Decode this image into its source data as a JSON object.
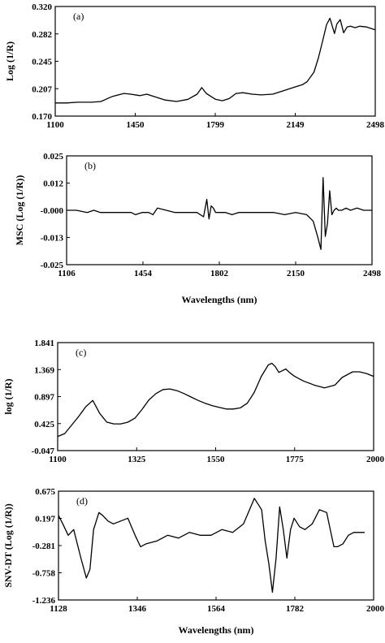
{
  "chart_data": [
    {
      "type": "line",
      "panel_label": "(a)",
      "ylabel": "Log (1/R)",
      "xlabel": "",
      "xticks": [
        "1100",
        "1450",
        "1799",
        "2149",
        "2498"
      ],
      "yticks": [
        "0.320",
        "0.282",
        "0.245",
        "0.207",
        "0.170"
      ],
      "xlim": [
        1100,
        2498
      ],
      "ylim": [
        0.17,
        0.32
      ],
      "grid": false,
      "series": [
        {
          "x": [
            1100,
            1150,
            1200,
            1260,
            1300,
            1350,
            1400,
            1430,
            1470,
            1500,
            1530,
            1580,
            1630,
            1680,
            1720,
            1740,
            1760,
            1780,
            1800,
            1830,
            1860,
            1890,
            1920,
            1960,
            2000,
            2050,
            2100,
            2149,
            2180,
            2200,
            2230,
            2250,
            2270,
            2285,
            2300,
            2320,
            2330,
            2345,
            2360,
            2375,
            2390,
            2410,
            2430,
            2460,
            2498
          ],
          "values": [
            0.188,
            0.188,
            0.189,
            0.189,
            0.19,
            0.197,
            0.201,
            0.2,
            0.198,
            0.2,
            0.197,
            0.192,
            0.19,
            0.193,
            0.2,
            0.209,
            0.201,
            0.197,
            0.193,
            0.191,
            0.194,
            0.201,
            0.202,
            0.2,
            0.199,
            0.2,
            0.205,
            0.21,
            0.213,
            0.217,
            0.23,
            0.25,
            0.275,
            0.295,
            0.304,
            0.283,
            0.296,
            0.302,
            0.284,
            0.292,
            0.293,
            0.291,
            0.293,
            0.292,
            0.288
          ]
        }
      ]
    },
    {
      "type": "line",
      "panel_label": "(b)",
      "ylabel": "MSC (Log (1/R))",
      "xlabel": "Wavelengths (nm)",
      "xticks": [
        "1106",
        "1454",
        "1802",
        "2150",
        "2498"
      ],
      "yticks": [
        "0.025",
        "0.012",
        "-0.000",
        "-0.013",
        "-0.025"
      ],
      "xlim": [
        1106,
        2498
      ],
      "ylim": [
        -0.025,
        0.025
      ],
      "grid": false,
      "series": [
        {
          "x": [
            1106,
            1150,
            1200,
            1230,
            1260,
            1300,
            1350,
            1400,
            1420,
            1450,
            1480,
            1500,
            1520,
            1560,
            1600,
            1650,
            1700,
            1730,
            1745,
            1755,
            1765,
            1775,
            1785,
            1800,
            1830,
            1860,
            1890,
            1920,
            1960,
            2000,
            2050,
            2100,
            2150,
            2200,
            2230,
            2250,
            2265,
            2275,
            2285,
            2295,
            2305,
            2315,
            2325,
            2335,
            2345,
            2360,
            2380,
            2400,
            2430,
            2460,
            2498
          ],
          "values": [
            0.0,
            0.0,
            -0.001,
            0.0,
            -0.001,
            -0.001,
            -0.001,
            -0.001,
            -0.002,
            -0.001,
            -0.001,
            -0.002,
            0.001,
            0.0,
            -0.001,
            -0.001,
            -0.001,
            -0.003,
            0.005,
            -0.004,
            0.002,
            0.001,
            -0.001,
            -0.001,
            -0.001,
            -0.002,
            -0.001,
            -0.001,
            -0.001,
            -0.001,
            -0.001,
            -0.002,
            -0.001,
            -0.002,
            -0.005,
            -0.012,
            -0.018,
            0.015,
            -0.012,
            -0.006,
            0.009,
            -0.002,
            0.0,
            0.001,
            0.0,
            0.0,
            0.001,
            0.0,
            0.001,
            0.0,
            0.0
          ]
        }
      ]
    },
    {
      "type": "line",
      "panel_label": "(c)",
      "ylabel": "log (1/R)",
      "xlabel": "",
      "xticks": [
        "1100",
        "1325",
        "1550",
        "1775",
        "2000"
      ],
      "yticks": [
        "1.841",
        "1.369",
        "0.897",
        "0.425",
        "-0.047"
      ],
      "xlim": [
        1100,
        2000
      ],
      "ylim": [
        -0.047,
        1.841
      ],
      "grid": false,
      "series": [
        {
          "x": [
            1100,
            1120,
            1140,
            1160,
            1180,
            1200,
            1220,
            1240,
            1260,
            1280,
            1300,
            1320,
            1340,
            1360,
            1380,
            1400,
            1420,
            1440,
            1460,
            1480,
            1500,
            1520,
            1540,
            1560,
            1580,
            1600,
            1620,
            1640,
            1660,
            1680,
            1700,
            1710,
            1720,
            1730,
            1740,
            1750,
            1760,
            1775,
            1800,
            1830,
            1860,
            1890,
            1910,
            1940,
            1960,
            1980,
            2000
          ],
          "values": [
            0.2,
            0.25,
            0.4,
            0.55,
            0.72,
            0.83,
            0.6,
            0.45,
            0.42,
            0.42,
            0.45,
            0.52,
            0.67,
            0.84,
            0.95,
            1.02,
            1.03,
            1.0,
            0.95,
            0.89,
            0.83,
            0.78,
            0.74,
            0.71,
            0.68,
            0.68,
            0.7,
            0.78,
            0.97,
            1.25,
            1.45,
            1.48,
            1.42,
            1.32,
            1.35,
            1.38,
            1.32,
            1.25,
            1.17,
            1.1,
            1.05,
            1.1,
            1.23,
            1.33,
            1.33,
            1.3,
            1.25
          ]
        }
      ]
    },
    {
      "type": "line",
      "panel_label": "(d)",
      "ylabel": "SNV-DT (Log (1/R))",
      "xlabel": "Wavelengths (nm)",
      "xticks": [
        "1128",
        "1346",
        "1564",
        "1782",
        "2000"
      ],
      "yticks": [
        "0.675",
        "0.197",
        "-0.281",
        "-0.758",
        "-1.236"
      ],
      "xlim": [
        1128,
        2000
      ],
      "ylim": [
        -1.236,
        0.675
      ],
      "grid": false,
      "series": [
        {
          "x": [
            1128,
            1140,
            1155,
            1170,
            1190,
            1205,
            1215,
            1225,
            1240,
            1250,
            1265,
            1280,
            1300,
            1320,
            1340,
            1355,
            1370,
            1400,
            1430,
            1460,
            1490,
            1520,
            1550,
            1580,
            1610,
            1640,
            1670,
            1690,
            1700,
            1710,
            1720,
            1730,
            1740,
            1750,
            1760,
            1770,
            1780,
            1795,
            1810,
            1830,
            1850,
            1870,
            1880,
            1890,
            1900,
            1915,
            1930,
            1945,
            1960,
            1975
          ],
          "values": [
            0.25,
            0.1,
            -0.1,
            0.0,
            -0.5,
            -0.85,
            -0.7,
            0.0,
            0.3,
            0.25,
            0.15,
            0.1,
            0.15,
            0.2,
            -0.1,
            -0.3,
            -0.25,
            -0.2,
            -0.1,
            -0.15,
            -0.05,
            -0.1,
            -0.1,
            0.0,
            -0.05,
            0.1,
            0.55,
            0.35,
            -0.2,
            -0.6,
            -1.1,
            -0.5,
            0.4,
            0.0,
            -0.5,
            0.0,
            0.2,
            0.05,
            0.0,
            0.1,
            0.35,
            0.3,
            0.0,
            -0.3,
            -0.3,
            -0.25,
            -0.1,
            -0.05,
            -0.05,
            -0.05
          ]
        }
      ]
    }
  ]
}
